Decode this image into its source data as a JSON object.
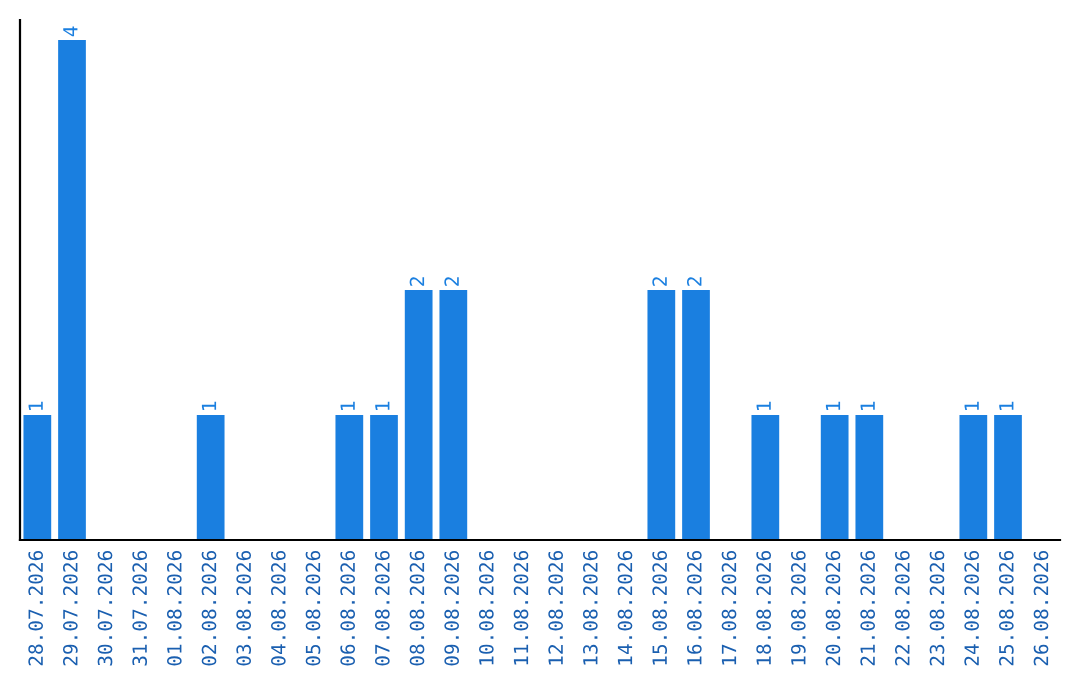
{
  "chart_data": {
    "type": "bar",
    "categories": [
      "28.07.2026",
      "29.07.2026",
      "30.07.2026",
      "31.07.2026",
      "01.08.2026",
      "02.08.2026",
      "03.08.2026",
      "04.08.2026",
      "05.08.2026",
      "06.08.2026",
      "07.08.2026",
      "08.08.2026",
      "09.08.2026",
      "10.08.2026",
      "11.08.2026",
      "12.08.2026",
      "13.08.2026",
      "14.08.2026",
      "15.08.2026",
      "16.08.2026",
      "17.08.2026",
      "18.08.2026",
      "19.08.2026",
      "20.08.2026",
      "21.08.2026",
      "22.08.2026",
      "23.08.2026",
      "24.08.2026",
      "25.08.2026",
      "26.08.2026"
    ],
    "values": [
      1,
      4,
      0,
      0,
      0,
      1,
      0,
      0,
      0,
      1,
      1,
      2,
      2,
      0,
      0,
      0,
      0,
      0,
      2,
      2,
      0,
      1,
      0,
      1,
      1,
      0,
      0,
      1,
      1,
      0
    ],
    "value_labels": [
      "1",
      "4",
      null,
      null,
      null,
      "1",
      null,
      null,
      null,
      "1",
      "1",
      "2",
      "2",
      null,
      null,
      null,
      null,
      null,
      "2",
      "2",
      null,
      "1",
      null,
      "1",
      "1",
      null,
      null,
      "1",
      "1",
      null
    ],
    "color": "#1a7fe0",
    "tick_labels": "x",
    "grid": false,
    "legend": false
  }
}
